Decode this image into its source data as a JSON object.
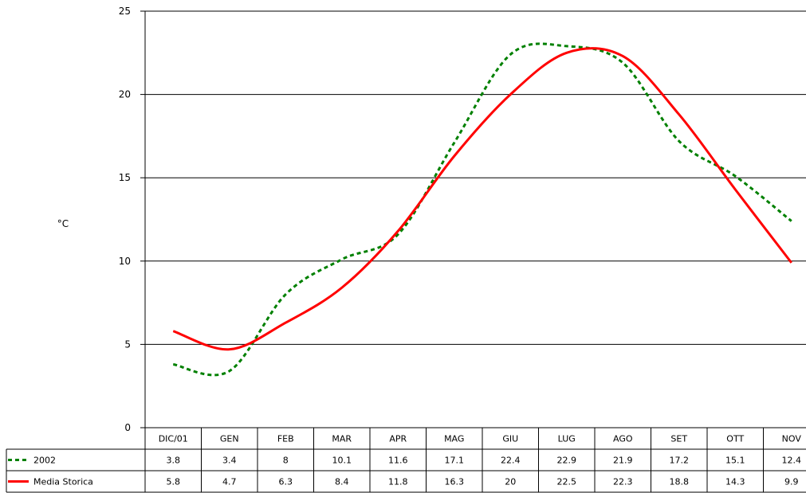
{
  "chart_data": {
    "type": "line",
    "ylabel": "°C",
    "ylim": [
      0,
      25
    ],
    "yticks": [
      "0",
      "5",
      "10",
      "15",
      "20",
      "25"
    ],
    "categories": [
      "DIC/01",
      "GEN",
      "FEB",
      "MAR",
      "APR",
      "MAG",
      "GIU",
      "LUG",
      "AGO",
      "SET",
      "OTT",
      "NOV"
    ],
    "grid": true,
    "legend_placement": "bottom-left data table",
    "series": [
      {
        "name": "2002",
        "color": "#008000",
        "style": "dashed",
        "values": [
          3.8,
          3.4,
          8,
          10.1,
          11.6,
          17.1,
          22.4,
          22.9,
          21.9,
          17.2,
          15.1,
          12.4
        ],
        "labels": [
          "3.8",
          "3.4",
          "8",
          "10.1",
          "11.6",
          "17.1",
          "22.4",
          "22.9",
          "21.9",
          "17.2",
          "15.1",
          "12.4"
        ]
      },
      {
        "name": "Media Storica",
        "color": "#ff0000",
        "style": "solid",
        "values": [
          5.8,
          4.7,
          6.3,
          8.4,
          11.8,
          16.3,
          20,
          22.5,
          22.3,
          18.8,
          14.3,
          9.9
        ],
        "labels": [
          "5.8",
          "4.7",
          "6.3",
          "8.4",
          "11.8",
          "16.3",
          "20",
          "22.5",
          "22.3",
          "18.8",
          "14.3",
          "9.9"
        ]
      }
    ]
  }
}
